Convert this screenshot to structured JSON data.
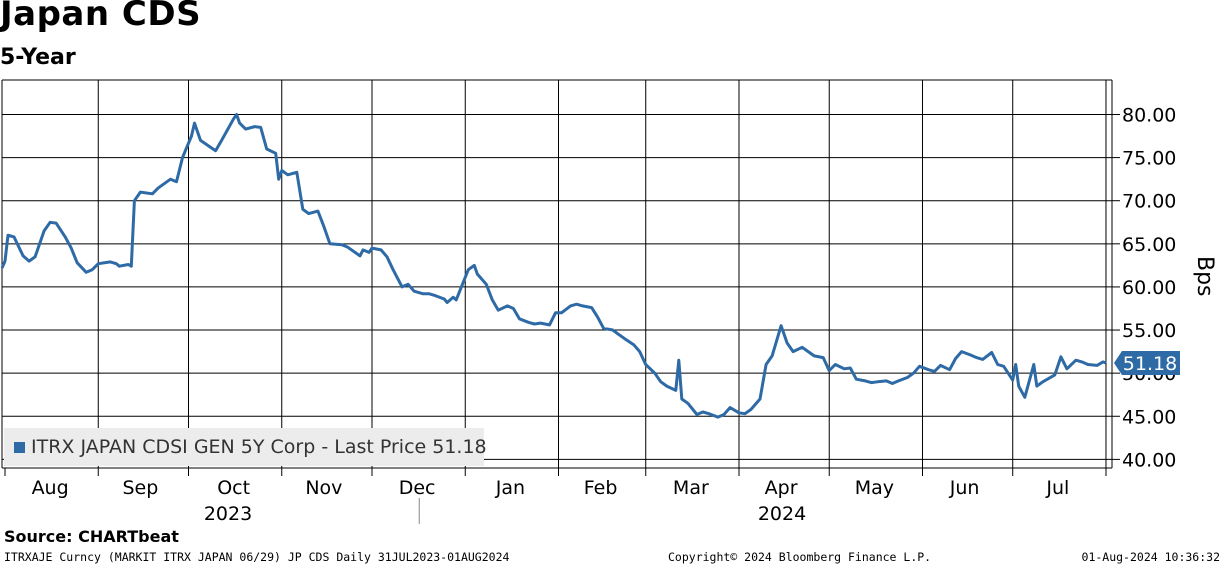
{
  "title": "Japan CDS",
  "subtitle": "5-Year",
  "source": "Source: CHARTbeat",
  "footer": {
    "left": "ITRXAJE Curncy (MARKIT ITRX JAPAN 06/29) JP CDS  Daily 31JUL2023-01AUG2024",
    "middle": "Copyright© 2024 Bloomberg Finance L.P.",
    "right": "01-Aug-2024 10:36:32"
  },
  "legend": {
    "label": "ITRX JAPAN CDSI GEN 5Y Corp - Last Price 51.18",
    "color": "#2e6aa6"
  },
  "last_price_label": "51.18",
  "chart_data": {
    "type": "line",
    "title": "Japan CDS",
    "subtitle": "5-Year",
    "ylabel": "Bps",
    "ylim": [
      39,
      84
    ],
    "yticks": [
      "40.00",
      "45.00",
      "50.00",
      "55.00",
      "60.00",
      "65.00",
      "70.00",
      "75.00",
      "80.00"
    ],
    "x_month_labels": [
      "Aug",
      "Sep",
      "Oct",
      "Nov",
      "Dec",
      "Jan",
      "Feb",
      "Mar",
      "Apr",
      "May",
      "Jun",
      "Jul"
    ],
    "x_year_labels": [
      "2023",
      "2024"
    ],
    "grid": true,
    "legend_position": "bottom-left",
    "series": [
      {
        "name": "ITRX JAPAN CDSI GEN 5Y Corp - Last Price",
        "color": "#2e6aa6",
        "last_value": 51.18,
        "points": [
          [
            "2023-07-31",
            62.2
          ],
          [
            "2023-08-01",
            63.0
          ],
          [
            "2023-08-02",
            66.0
          ],
          [
            "2023-08-04",
            65.8
          ],
          [
            "2023-08-07",
            63.6
          ],
          [
            "2023-08-09",
            63.0
          ],
          [
            "2023-08-11",
            63.5
          ],
          [
            "2023-08-14",
            66.5
          ],
          [
            "2023-08-16",
            67.5
          ],
          [
            "2023-08-18",
            67.4
          ],
          [
            "2023-08-21",
            65.8
          ],
          [
            "2023-08-23",
            64.5
          ],
          [
            "2023-08-25",
            62.8
          ],
          [
            "2023-08-28",
            61.7
          ],
          [
            "2023-08-30",
            62.0
          ],
          [
            "2023-09-01",
            62.7
          ],
          [
            "2023-09-05",
            62.9
          ],
          [
            "2023-09-07",
            62.7
          ],
          [
            "2023-09-08",
            62.4
          ],
          [
            "2023-09-11",
            62.6
          ],
          [
            "2023-09-12",
            62.4
          ],
          [
            "2023-09-13",
            70.0
          ],
          [
            "2023-09-15",
            71.0
          ],
          [
            "2023-09-19",
            70.8
          ],
          [
            "2023-09-21",
            71.5
          ],
          [
            "2023-09-25",
            72.5
          ],
          [
            "2023-09-27",
            72.2
          ],
          [
            "2023-09-29",
            75.0
          ],
          [
            "2023-10-02",
            77.5
          ],
          [
            "2023-10-03",
            79.0
          ],
          [
            "2023-10-05",
            77.0
          ],
          [
            "2023-10-10",
            75.8
          ],
          [
            "2023-10-12",
            77.0
          ],
          [
            "2023-10-16",
            79.5
          ],
          [
            "2023-10-17",
            80.0
          ],
          [
            "2023-10-18",
            79.0
          ],
          [
            "2023-10-20",
            78.3
          ],
          [
            "2023-10-23",
            78.6
          ],
          [
            "2023-10-25",
            78.5
          ],
          [
            "2023-10-27",
            76.0
          ],
          [
            "2023-10-30",
            75.5
          ],
          [
            "2023-10-31",
            72.5
          ],
          [
            "2023-11-01",
            73.5
          ],
          [
            "2023-11-03",
            73.0
          ],
          [
            "2023-11-06",
            73.3
          ],
          [
            "2023-11-08",
            69.0
          ],
          [
            "2023-11-10",
            68.5
          ],
          [
            "2023-11-13",
            68.8
          ],
          [
            "2023-11-15",
            67.0
          ],
          [
            "2023-11-17",
            65.0
          ],
          [
            "2023-11-21",
            64.9
          ],
          [
            "2023-11-23",
            64.6
          ],
          [
            "2023-11-27",
            63.6
          ],
          [
            "2023-11-28",
            64.3
          ],
          [
            "2023-11-30",
            64.0
          ],
          [
            "2023-12-01",
            64.5
          ],
          [
            "2023-12-04",
            64.3
          ],
          [
            "2023-12-06",
            63.5
          ],
          [
            "2023-12-08",
            62.0
          ],
          [
            "2023-12-11",
            60.0
          ],
          [
            "2023-12-13",
            60.3
          ],
          [
            "2023-12-15",
            59.5
          ],
          [
            "2023-12-18",
            59.2
          ],
          [
            "2023-12-20",
            59.2
          ],
          [
            "2023-12-22",
            59.0
          ],
          [
            "2023-12-25",
            58.6
          ],
          [
            "2023-12-26",
            58.2
          ],
          [
            "2023-12-28",
            58.8
          ],
          [
            "2023-12-29",
            58.5
          ],
          [
            "2024-01-02",
            62.0
          ],
          [
            "2024-01-04",
            62.5
          ],
          [
            "2024-01-05",
            61.5
          ],
          [
            "2024-01-08",
            60.3
          ],
          [
            "2024-01-10",
            58.5
          ],
          [
            "2024-01-12",
            57.3
          ],
          [
            "2024-01-15",
            57.8
          ],
          [
            "2024-01-17",
            57.5
          ],
          [
            "2024-01-19",
            56.3
          ],
          [
            "2024-01-22",
            55.9
          ],
          [
            "2024-01-24",
            55.7
          ],
          [
            "2024-01-26",
            55.8
          ],
          [
            "2024-01-29",
            55.6
          ],
          [
            "2024-01-31",
            57.0
          ],
          [
            "2024-02-02",
            57.0
          ],
          [
            "2024-02-05",
            57.8
          ],
          [
            "2024-02-07",
            58.0
          ],
          [
            "2024-02-09",
            57.8
          ],
          [
            "2024-02-12",
            57.6
          ],
          [
            "2024-02-14",
            56.5
          ],
          [
            "2024-02-16",
            55.2
          ],
          [
            "2024-02-19",
            55.0
          ],
          [
            "2024-02-21",
            54.5
          ],
          [
            "2024-02-23",
            54.0
          ],
          [
            "2024-02-26",
            53.3
          ],
          [
            "2024-02-28",
            52.5
          ],
          [
            "2024-03-01",
            51.0
          ],
          [
            "2024-03-04",
            50.0
          ],
          [
            "2024-03-06",
            49.0
          ],
          [
            "2024-03-08",
            48.5
          ],
          [
            "2024-03-11",
            48.0
          ],
          [
            "2024-03-12",
            51.5
          ],
          [
            "2024-03-13",
            47.0
          ],
          [
            "2024-03-15",
            46.5
          ],
          [
            "2024-03-18",
            45.2
          ],
          [
            "2024-03-20",
            45.5
          ],
          [
            "2024-03-22",
            45.3
          ],
          [
            "2024-03-25",
            44.9
          ],
          [
            "2024-03-27",
            45.2
          ],
          [
            "2024-03-29",
            46.0
          ],
          [
            "2024-04-01",
            45.4
          ],
          [
            "2024-04-03",
            45.3
          ],
          [
            "2024-04-05",
            45.8
          ],
          [
            "2024-04-08",
            47.0
          ],
          [
            "2024-04-10",
            51.0
          ],
          [
            "2024-04-12",
            52.0
          ],
          [
            "2024-04-15",
            55.5
          ],
          [
            "2024-04-17",
            53.5
          ],
          [
            "2024-04-19",
            52.5
          ],
          [
            "2024-04-22",
            53.0
          ],
          [
            "2024-04-24",
            52.5
          ],
          [
            "2024-04-26",
            52.0
          ],
          [
            "2024-04-29",
            51.8
          ],
          [
            "2024-05-01",
            50.3
          ],
          [
            "2024-05-03",
            51.0
          ],
          [
            "2024-05-06",
            50.5
          ],
          [
            "2024-05-08",
            50.6
          ],
          [
            "2024-05-10",
            49.3
          ],
          [
            "2024-05-13",
            49.1
          ],
          [
            "2024-05-15",
            48.9
          ],
          [
            "2024-05-17",
            49.0
          ],
          [
            "2024-05-20",
            49.1
          ],
          [
            "2024-05-22",
            48.8
          ],
          [
            "2024-05-24",
            49.1
          ],
          [
            "2024-05-27",
            49.5
          ],
          [
            "2024-05-29",
            50.0
          ],
          [
            "2024-05-31",
            50.8
          ],
          [
            "2024-06-03",
            50.4
          ],
          [
            "2024-06-05",
            50.2
          ],
          [
            "2024-06-07",
            50.9
          ],
          [
            "2024-06-10",
            50.4
          ],
          [
            "2024-06-12",
            51.7
          ],
          [
            "2024-06-14",
            52.5
          ],
          [
            "2024-06-17",
            52.1
          ],
          [
            "2024-06-19",
            51.8
          ],
          [
            "2024-06-21",
            51.6
          ],
          [
            "2024-06-24",
            52.4
          ],
          [
            "2024-06-26",
            51.0
          ],
          [
            "2024-06-28",
            50.8
          ],
          [
            "2024-07-01",
            49.2
          ],
          [
            "2024-07-02",
            51.0
          ],
          [
            "2024-07-03",
            48.5
          ],
          [
            "2024-07-05",
            47.2
          ],
          [
            "2024-07-08",
            51.0
          ],
          [
            "2024-07-09",
            48.5
          ],
          [
            "2024-07-11",
            49.0
          ],
          [
            "2024-07-15",
            49.8
          ],
          [
            "2024-07-17",
            51.9
          ],
          [
            "2024-07-19",
            50.5
          ],
          [
            "2024-07-22",
            51.5
          ],
          [
            "2024-07-24",
            51.3
          ],
          [
            "2024-07-26",
            51.0
          ],
          [
            "2024-07-29",
            50.9
          ],
          [
            "2024-07-31",
            51.3
          ],
          [
            "2024-08-01",
            51.18
          ]
        ]
      }
    ]
  }
}
